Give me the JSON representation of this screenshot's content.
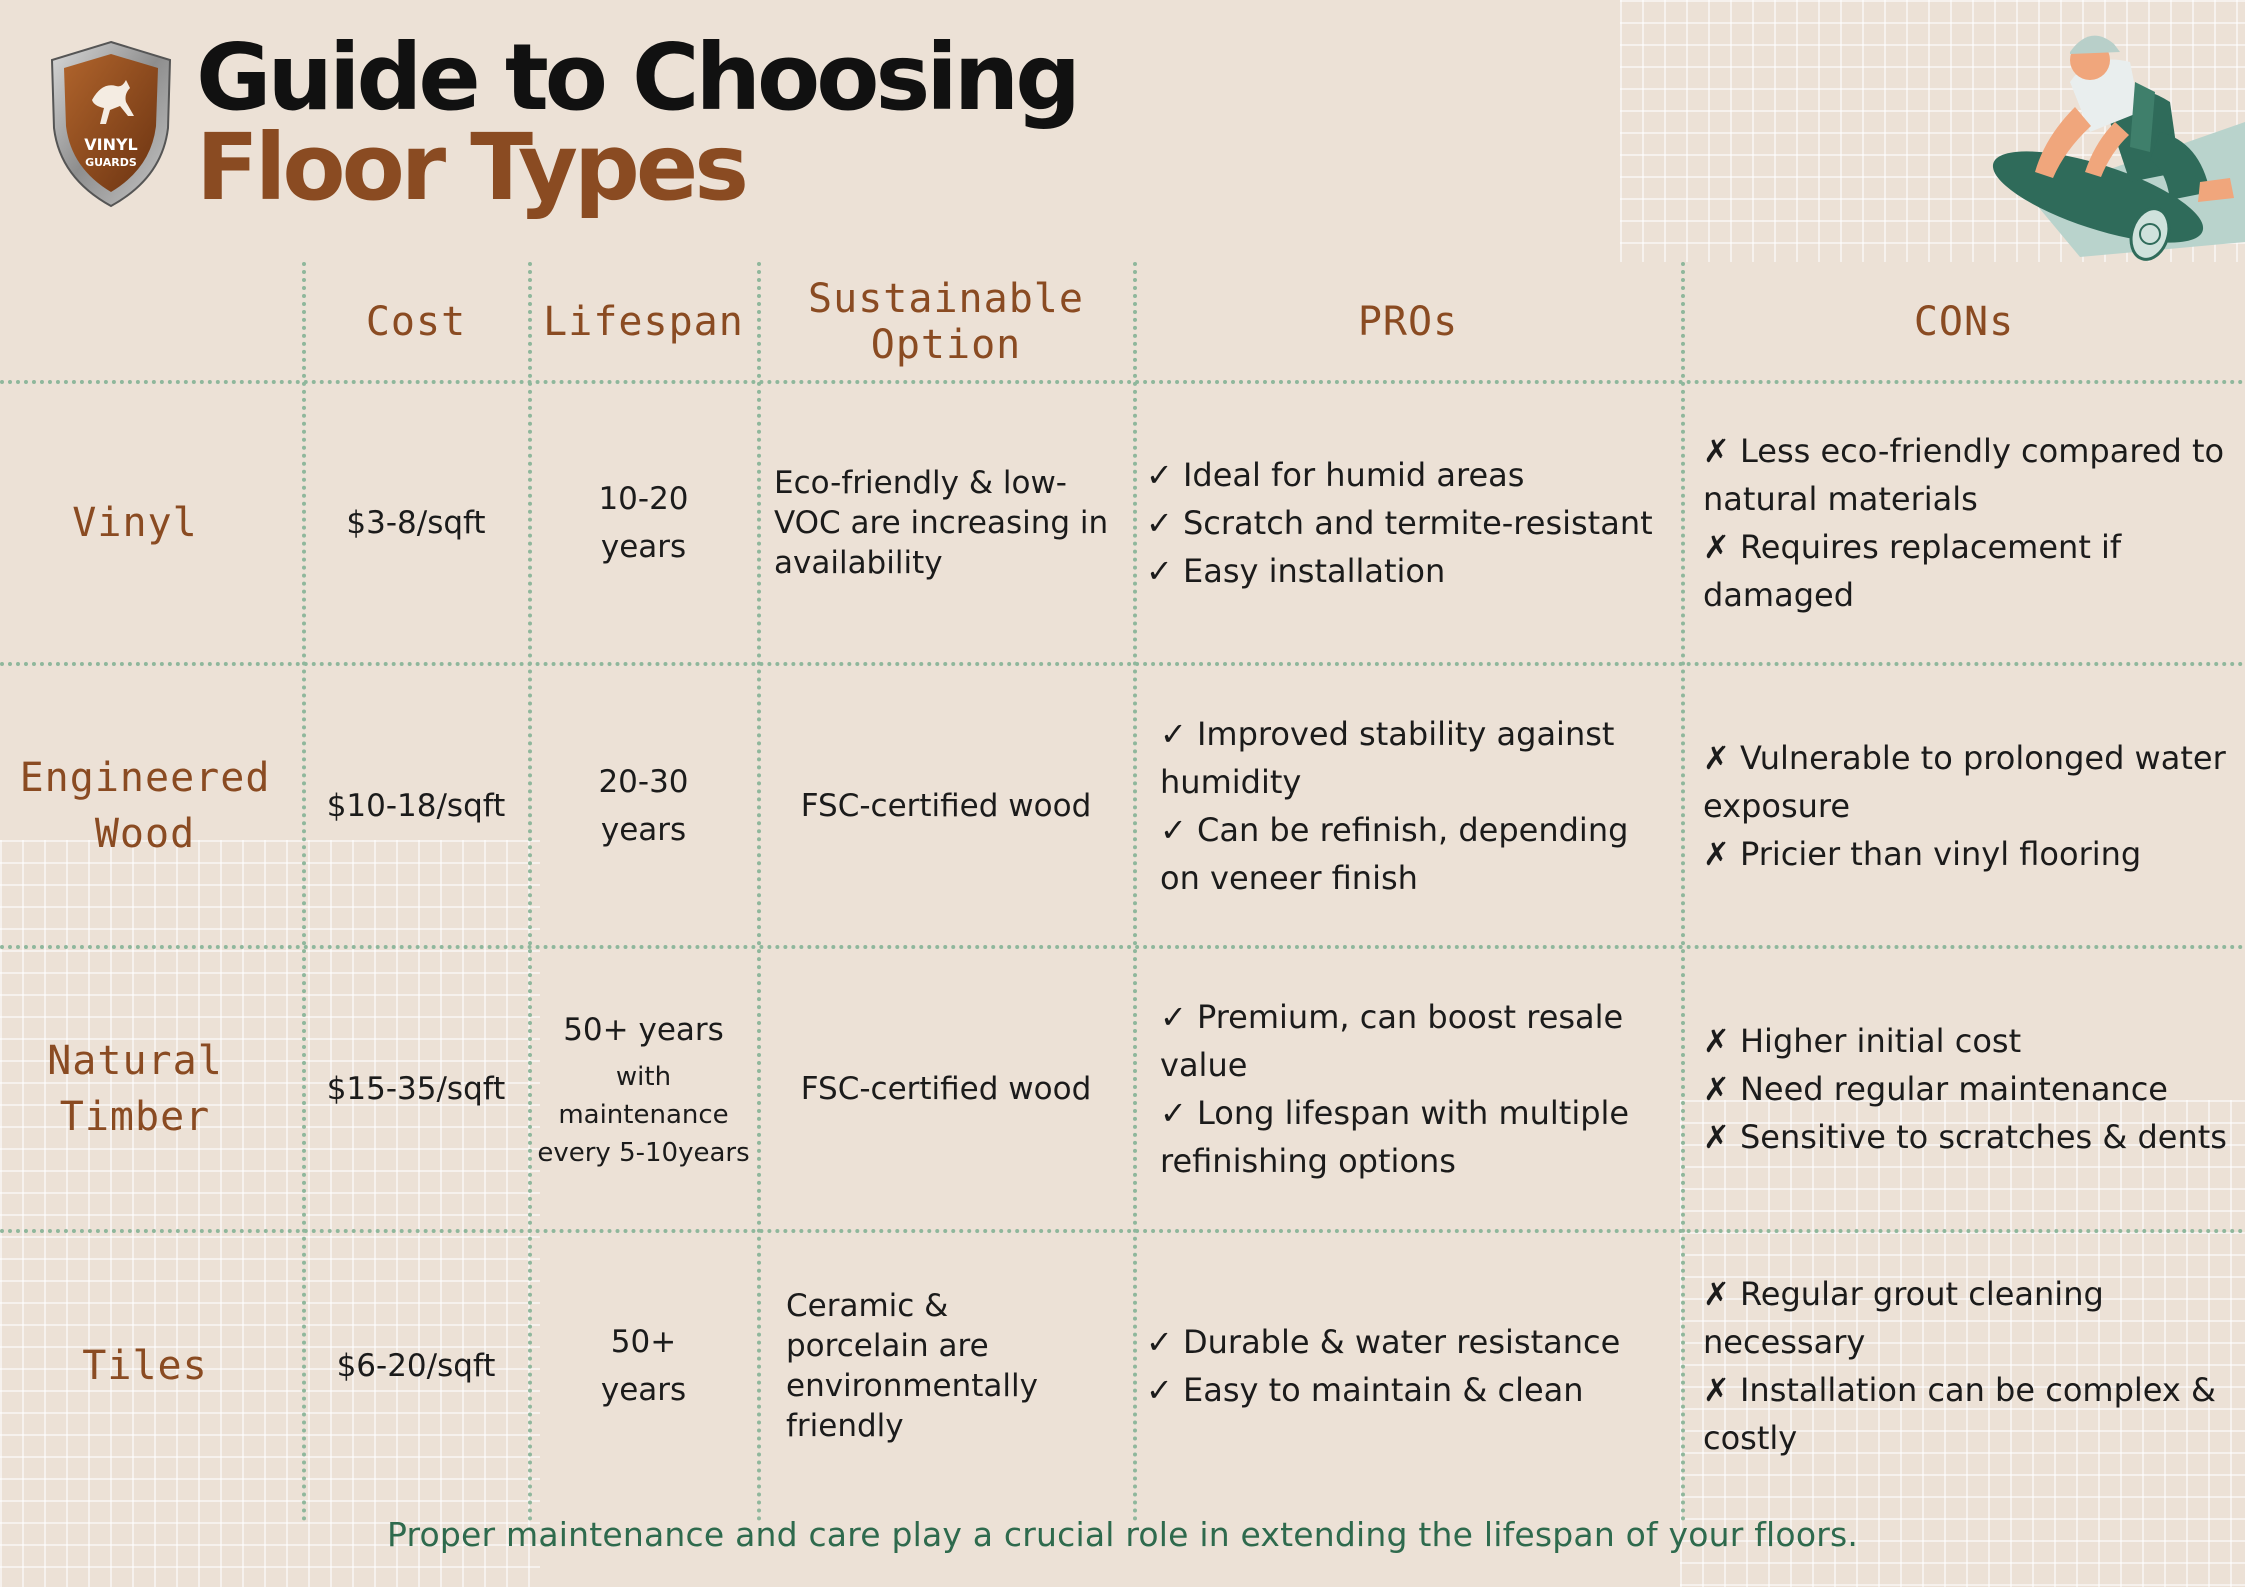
{
  "logo": {
    "brand_line1": "VINYL",
    "brand_line2": "GUARDS"
  },
  "title": {
    "line1": "Guide to Choosing",
    "line2": "Floor Types"
  },
  "headers": {
    "cost": "Cost",
    "lifespan": "Lifespan",
    "sustainable": "Sustainable Option",
    "pros": "PROs",
    "cons": "CONs"
  },
  "rows": [
    {
      "label": "Vinyl",
      "cost": "$3-8/sqft",
      "lifespan": "10-20 years",
      "lifespan_note": "",
      "sustainable": "Eco-friendly & low-VOC are increasing in availability",
      "pros": [
        "✓ Ideal for humid areas",
        "✓ Scratch and termite-resistant",
        "✓ Easy installation"
      ],
      "cons": [
        "✗ Less eco-friendly compared to natural materials",
        "✗ Requires replacement if damaged"
      ]
    },
    {
      "label": "Engineered Wood",
      "cost": "$10-18/sqft",
      "lifespan": "20-30 years",
      "lifespan_note": "",
      "sustainable": "FSC-certified wood",
      "pros": [
        "✓ Improved stability against humidity",
        "✓ Can be refinish, depending on veneer finish"
      ],
      "cons": [
        "✗ Vulnerable to prolonged water exposure",
        "✗ Pricier than vinyl flooring"
      ]
    },
    {
      "label": "Natural Timber",
      "cost": "$15-35/sqft",
      "lifespan": "50+ years",
      "lifespan_note": "with maintenance every 5-10years",
      "sustainable": "FSC-certified wood",
      "pros": [
        "✓ Premium, can boost resale value",
        "✓ Long lifespan with multiple refinishing options"
      ],
      "cons": [
        "✗ Higher initial cost",
        "✗ Need regular maintenance",
        "✗ Sensitive to scratches & dents"
      ]
    },
    {
      "label": "Tiles",
      "cost": "$6-20/sqft",
      "lifespan": "50+ years",
      "lifespan_note": "",
      "sustainable": "Ceramic & porcelain are environmentally friendly",
      "pros": [
        "✓ Durable & water resistance",
        "✓ Easy to maintain & clean"
      ],
      "cons": [
        "✗ Regular grout cleaning necessary",
        "✗ Installation can be complex & costly"
      ]
    }
  ],
  "footer": "Proper maintenance and care play a crucial role in extending the lifespan of your floors.",
  "icons": {
    "logo": "horse-shield-logo",
    "illustration": "worker-rolling-vinyl-floor",
    "check": "check-mark",
    "cross": "cross-mark"
  },
  "colors": {
    "background": "#ece1d6",
    "accent_brown": "#8a4b22",
    "grid_green": "#8fb79c",
    "footer_green": "#2e6a4d"
  }
}
